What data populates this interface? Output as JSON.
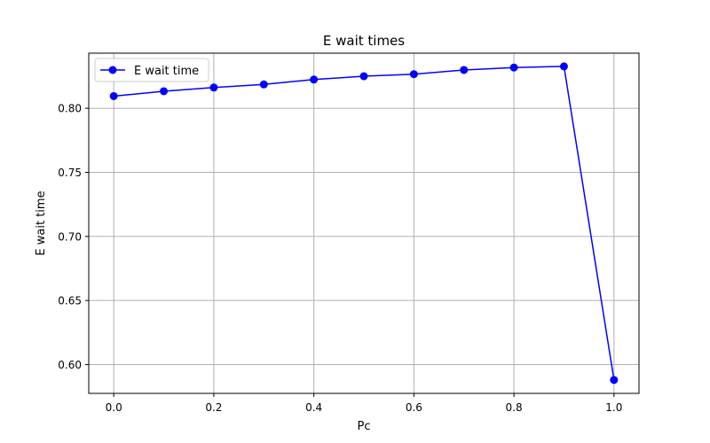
{
  "chart_data": {
    "type": "line",
    "title": "E wait times",
    "xlabel": "Pc",
    "ylabel": "E wait time",
    "xlim": [
      -0.05,
      1.05
    ],
    "ylim": [
      0.5775,
      0.843
    ],
    "xticks": [
      0.0,
      0.2,
      0.4,
      0.6,
      0.8,
      1.0
    ],
    "xtick_labels": [
      "0.0",
      "0.2",
      "0.4",
      "0.6",
      "0.8",
      "1.0"
    ],
    "yticks": [
      0.6,
      0.65,
      0.7,
      0.75,
      0.8
    ],
    "ytick_labels": [
      "0.60",
      "0.65",
      "0.70",
      "0.75",
      "0.80"
    ],
    "grid": true,
    "legend_position": "top-left",
    "series": [
      {
        "name": "E wait time",
        "color": "#0000ff",
        "marker": "circle",
        "x": [
          0.0,
          0.1,
          0.2,
          0.3,
          0.4,
          0.5,
          0.6,
          0.7,
          0.8,
          0.9,
          1.0
        ],
        "values": [
          0.8095,
          0.8133,
          0.8162,
          0.8186,
          0.8224,
          0.825,
          0.8266,
          0.8299,
          0.8318,
          0.8327,
          0.588
        ]
      }
    ]
  }
}
